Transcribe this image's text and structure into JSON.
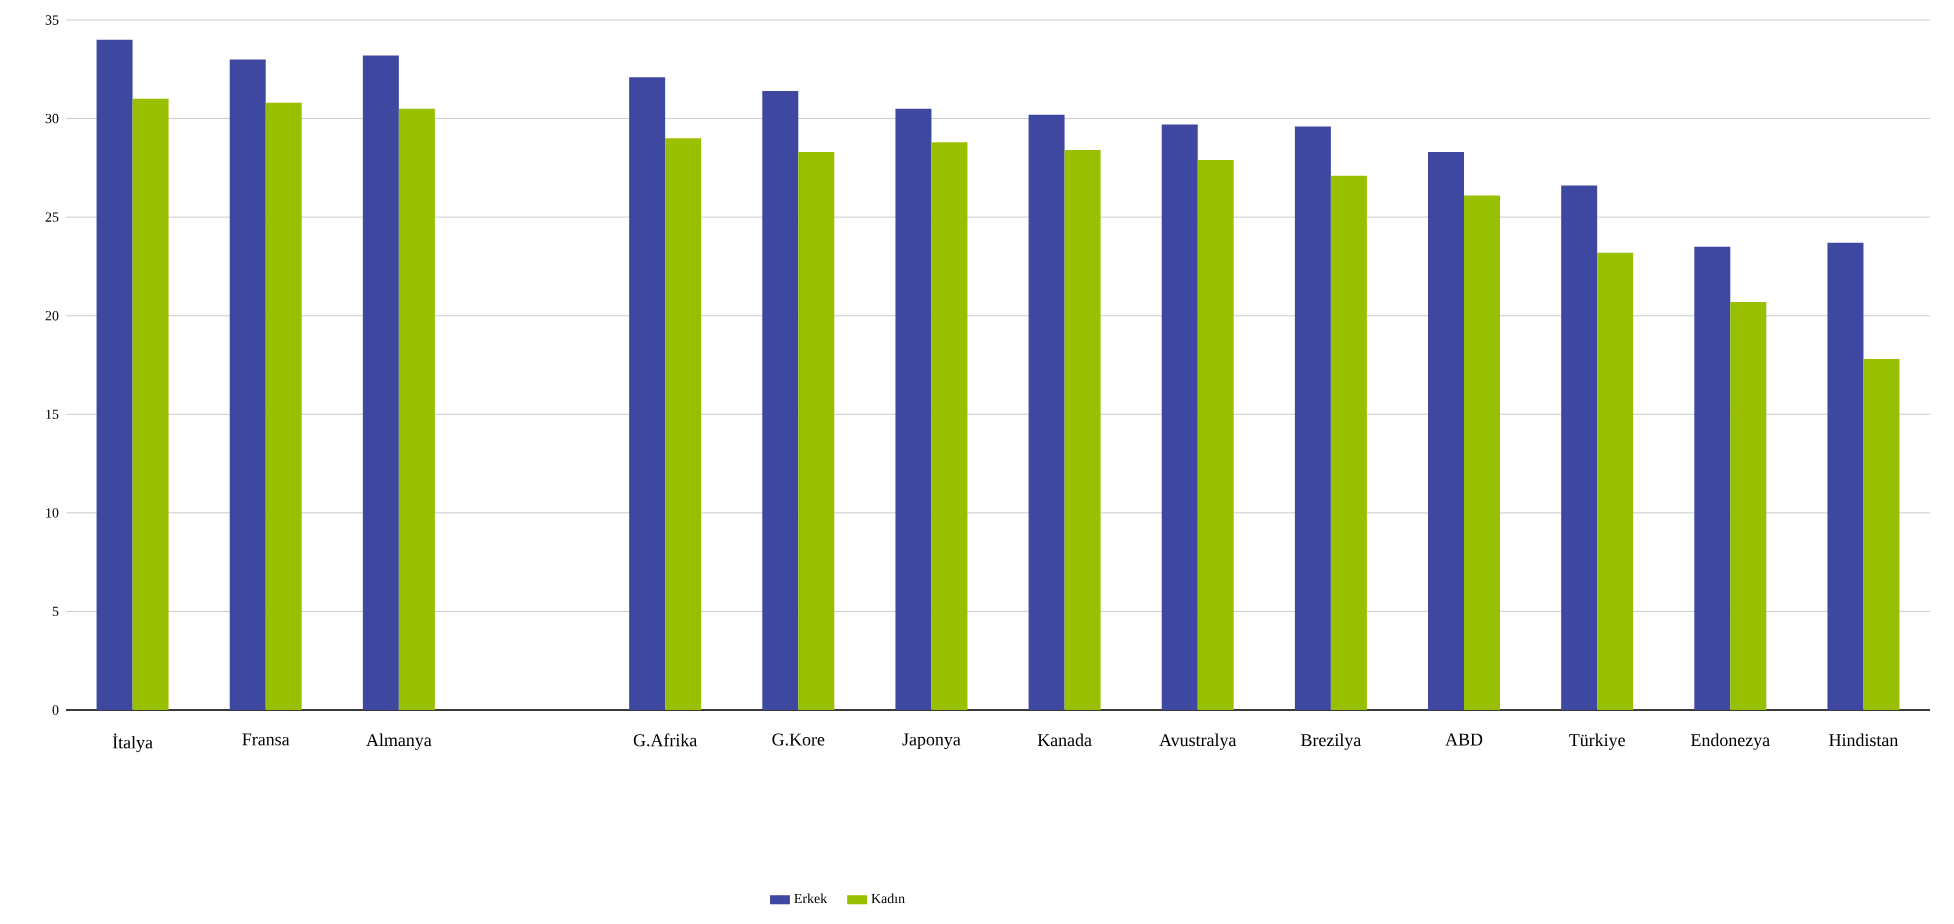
{
  "chart_data": {
    "type": "bar",
    "categories": [
      "İtalya",
      "Fransa",
      "Almanya",
      null,
      "G.Afrika",
      "G.Kore",
      "Japonya",
      "Kanada",
      "Avustralya",
      "Brezilya",
      "ABD",
      "Türkiye",
      "Endonezya",
      "Hindistan"
    ],
    "series": [
      {
        "name": "Erkek",
        "color": "#3f48a0",
        "values": [
          34.0,
          33.0,
          33.2,
          null,
          32.1,
          31.4,
          30.5,
          30.2,
          29.7,
          29.6,
          28.3,
          26.6,
          23.5,
          23.7
        ]
      },
      {
        "name": "Kadın",
        "color": "#99c000",
        "values": [
          31.0,
          30.8,
          30.5,
          null,
          29.0,
          28.3,
          28.8,
          28.4,
          27.9,
          27.1,
          26.1,
          23.2,
          20.7,
          17.8
        ]
      }
    ],
    "ylim": [
      0,
      35
    ],
    "yticks": [
      0,
      5,
      10,
      15,
      20,
      25,
      30,
      35
    ],
    "grid": "y",
    "legend": "bottom"
  }
}
